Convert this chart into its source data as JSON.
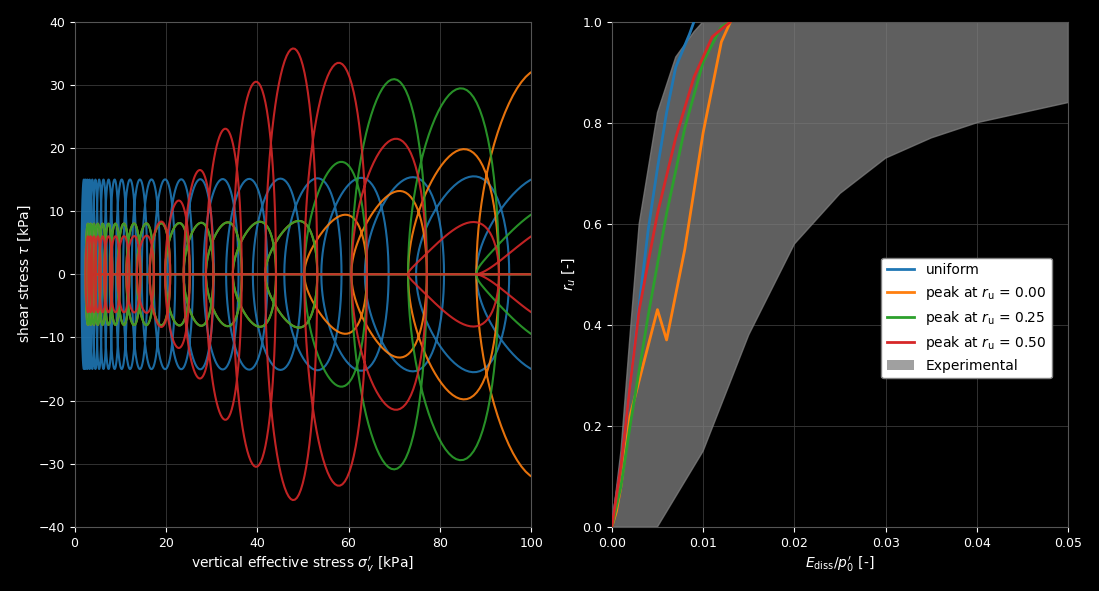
{
  "left": {
    "xlabel": "vertical effective stress $\\sigma_v^{\\prime}$ [kPa]",
    "ylabel": "shear stress $\\tau$ [kPa]",
    "xlim": [
      0,
      100
    ],
    "ylim": [
      -40,
      40
    ],
    "xticks": [
      0,
      20,
      40,
      60,
      80,
      100
    ],
    "yticks": [
      -40,
      -30,
      -20,
      -10,
      0,
      10,
      20,
      30,
      40
    ],
    "bg_color": "#000000",
    "grid_color": "#3a3a3a"
  },
  "right": {
    "xlabel": "$E_{\\mathrm{diss}}/p_0^{\\prime}$ [-]",
    "ylabel": "$r_u$ [-]",
    "xlim": [
      0.0,
      0.05
    ],
    "ylim": [
      0.0,
      1.0
    ],
    "xticks": [
      0.0,
      0.01,
      0.02,
      0.03,
      0.04,
      0.05
    ],
    "yticks": [
      0.0,
      0.2,
      0.4,
      0.6,
      0.8,
      1.0
    ],
    "bg_color": "#000000",
    "grid_color": "#3a3a3a"
  },
  "colors": {
    "uniform": "#1f77b4",
    "peak_0": "#ff7f0e",
    "peak_025": "#2ca02c",
    "peak_050": "#d62728"
  },
  "legend_labels": [
    "uniform",
    "peak at $r_{\\mathrm{u}}$ = 0.00",
    "peak at $r_{\\mathrm{u}}$ = 0.25",
    "peak at $r_{\\mathrm{u}}$ = 0.50",
    "Experimental"
  ],
  "exp_upper_x": [
    0.0,
    0.001,
    0.002,
    0.003,
    0.005,
    0.007,
    0.009,
    0.01,
    0.012,
    0.015,
    0.02,
    0.03,
    0.04,
    0.05
  ],
  "exp_upper_y": [
    0.0,
    0.15,
    0.38,
    0.6,
    0.82,
    0.93,
    0.98,
    1.0,
    1.0,
    1.0,
    1.0,
    1.0,
    1.0,
    1.0
  ],
  "exp_lower_x": [
    0.0,
    0.005,
    0.01,
    0.015,
    0.02,
    0.025,
    0.03,
    0.035,
    0.04,
    0.045,
    0.05
  ],
  "exp_lower_y": [
    0.0,
    0.0,
    0.15,
    0.38,
    0.56,
    0.66,
    0.73,
    0.77,
    0.8,
    0.82,
    0.84
  ],
  "blue_x": [
    0.0,
    0.001,
    0.002,
    0.003,
    0.004,
    0.005,
    0.006,
    0.007,
    0.0085,
    0.009
  ],
  "blue_y": [
    0.0,
    0.12,
    0.28,
    0.44,
    0.59,
    0.71,
    0.82,
    0.91,
    0.975,
    1.0
  ],
  "orange_x": [
    0.0,
    0.0005,
    0.001,
    0.0015,
    0.002,
    0.003,
    0.004,
    0.005,
    0.006,
    0.008,
    0.01,
    0.012,
    0.013
  ],
  "orange_y": [
    0.0,
    0.03,
    0.08,
    0.15,
    0.22,
    0.29,
    0.36,
    0.43,
    0.37,
    0.55,
    0.78,
    0.96,
    1.0
  ],
  "green_x": [
    0.0,
    0.001,
    0.002,
    0.004,
    0.006,
    0.008,
    0.01,
    0.012,
    0.013
  ],
  "green_y": [
    0.0,
    0.08,
    0.2,
    0.42,
    0.62,
    0.79,
    0.92,
    0.99,
    1.0
  ],
  "red_x": [
    0.0,
    0.001,
    0.002,
    0.003,
    0.005,
    0.007,
    0.009,
    0.011,
    0.013
  ],
  "red_y": [
    0.0,
    0.12,
    0.28,
    0.43,
    0.62,
    0.77,
    0.89,
    0.97,
    1.0
  ]
}
